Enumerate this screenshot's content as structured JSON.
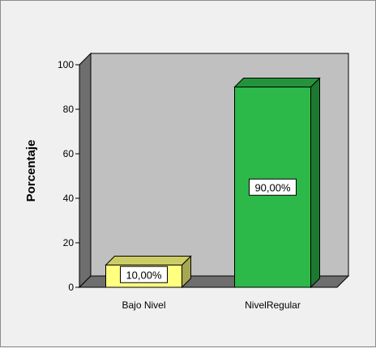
{
  "chart_data": {
    "type": "bar",
    "title": "",
    "xlabel": "",
    "ylabel": "Porcentaje",
    "categories": [
      "Bajo Nivel",
      "NivelRegular"
    ],
    "values": [
      10,
      90
    ],
    "data_labels": [
      "10,00%",
      "90,00%"
    ],
    "ylim": [
      0,
      100
    ],
    "yticks": [
      0,
      20,
      40,
      60,
      80,
      100
    ],
    "grid": false,
    "style": "3d",
    "colors": {
      "plot_background": "#c0c0c0",
      "bar_fills": [
        "#ffff80",
        "#2db84a"
      ]
    }
  }
}
